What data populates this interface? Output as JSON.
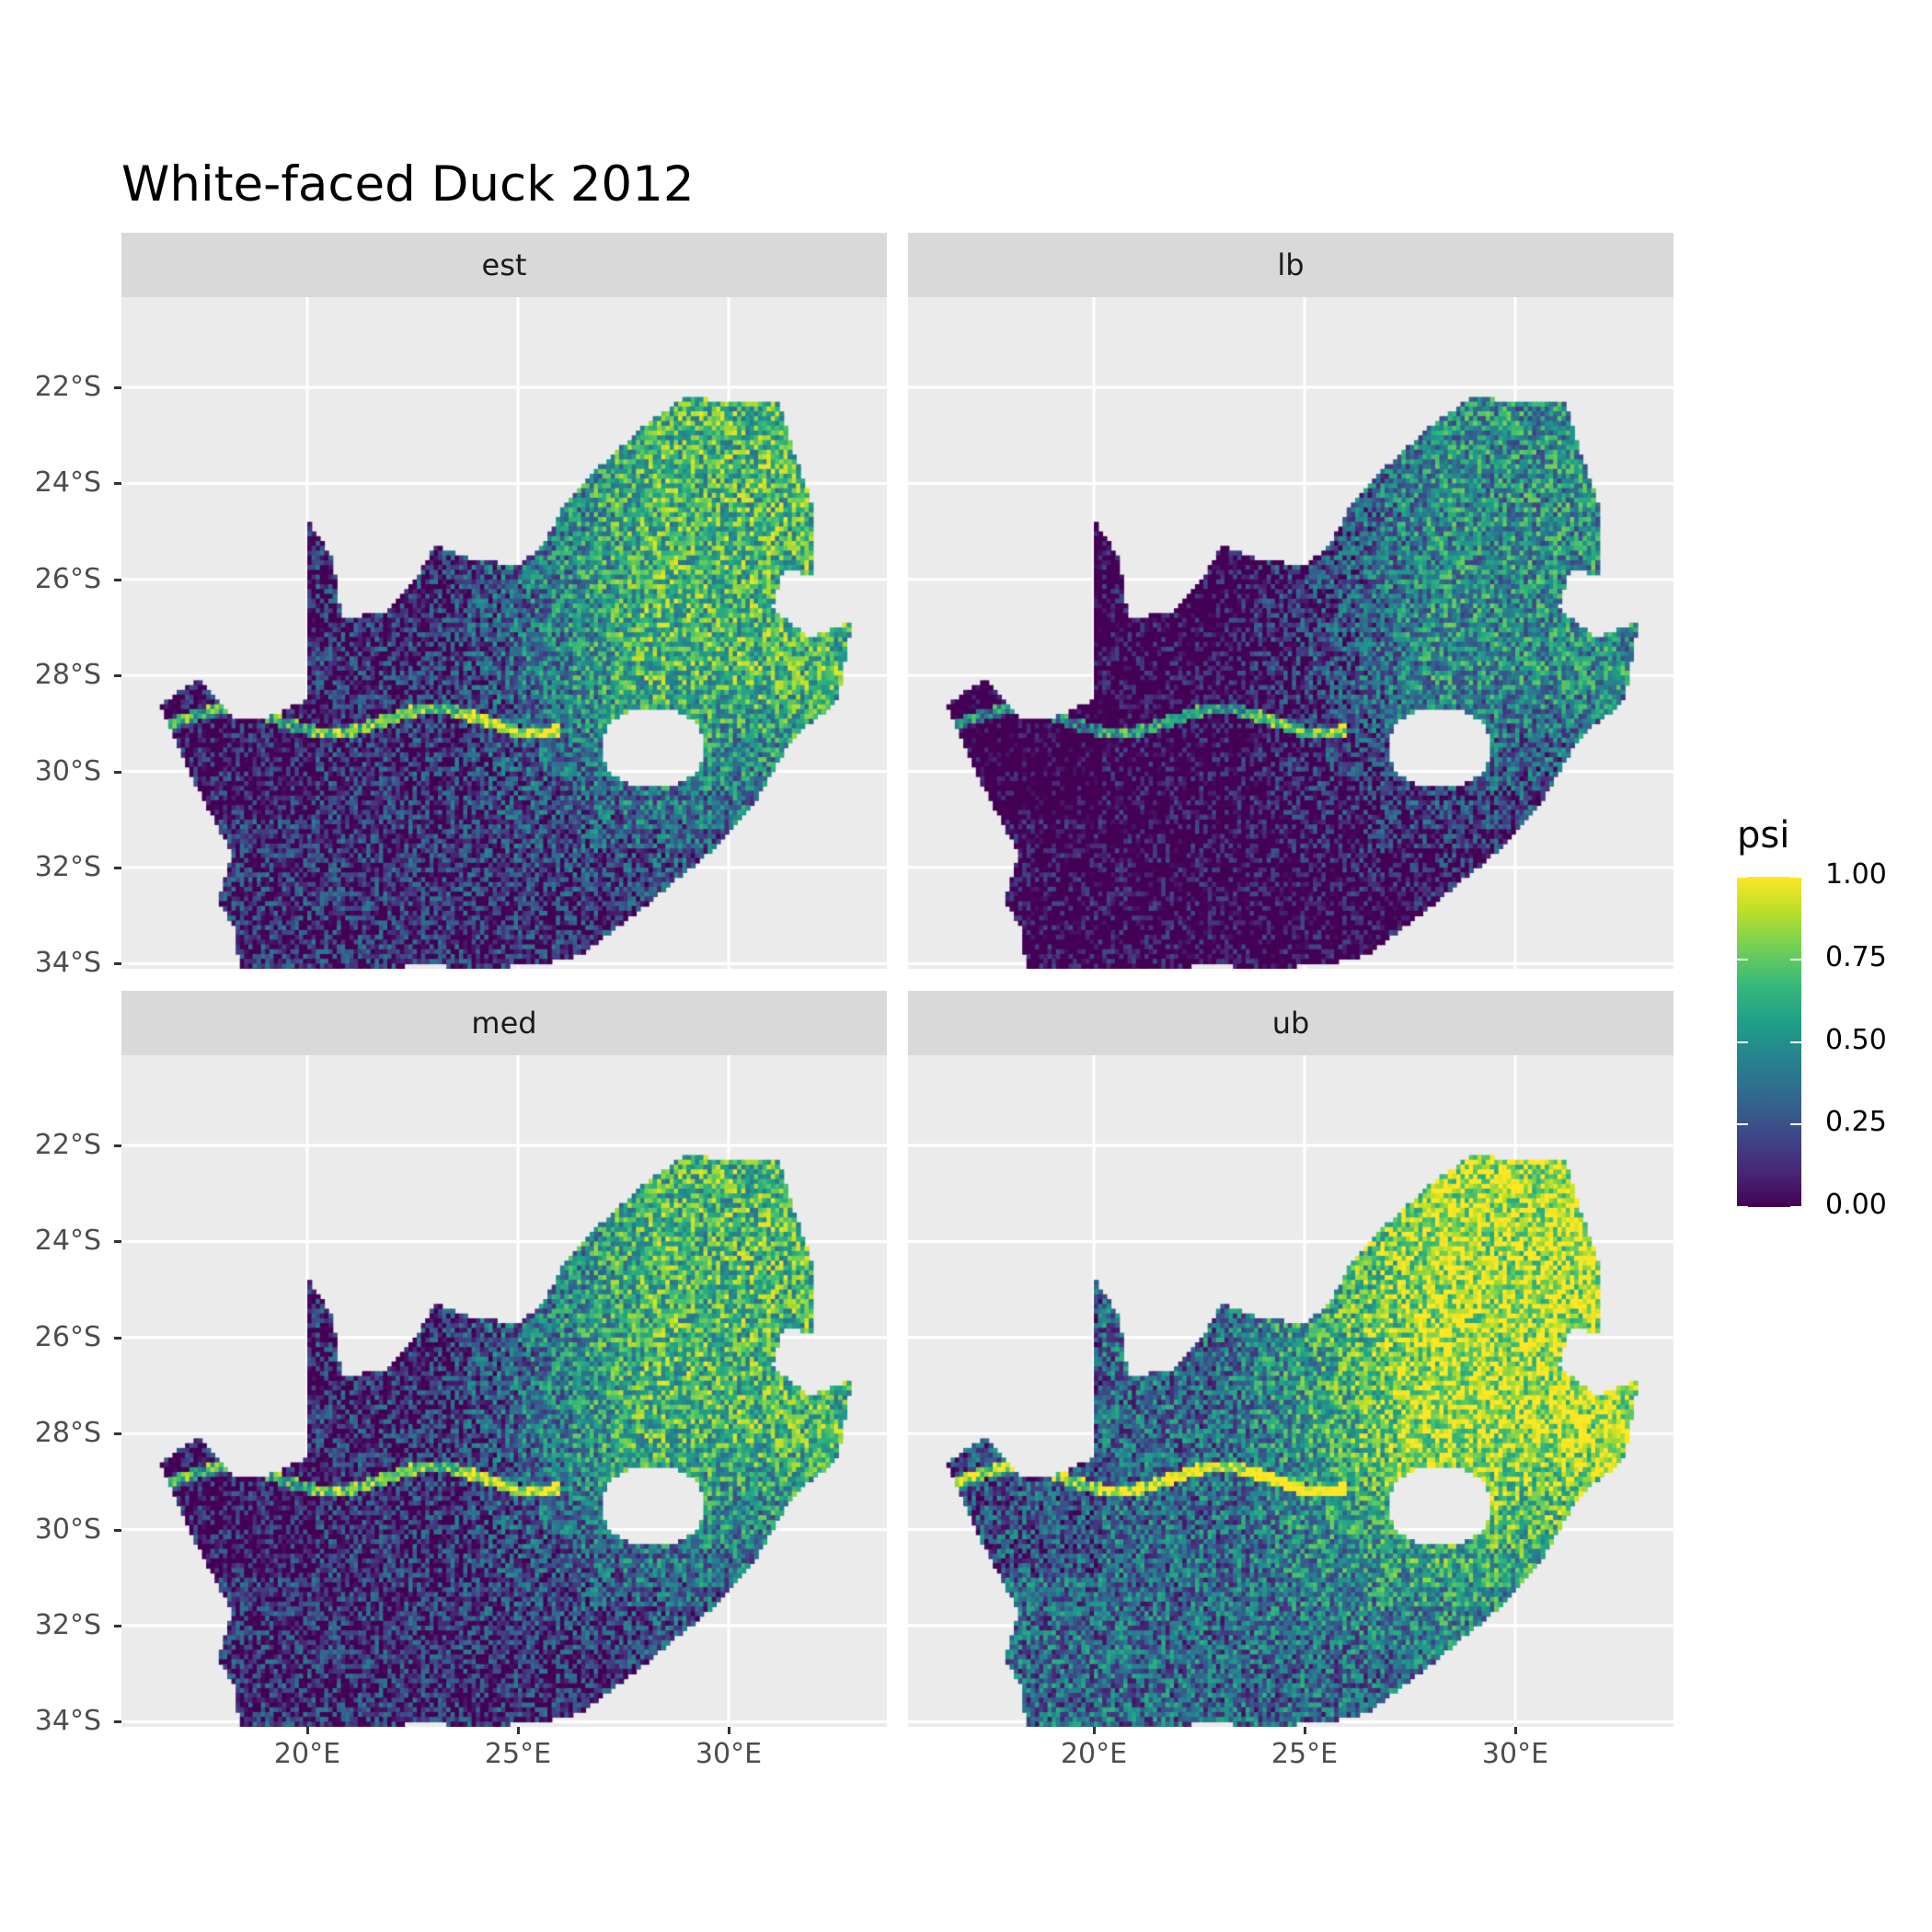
{
  "title": "White-faced Duck 2012",
  "facets": [
    "est",
    "lb",
    "med",
    "ub"
  ],
  "y_axis_labels": [
    "22°S",
    "24°S",
    "26°S",
    "28°S",
    "30°S",
    "32°S",
    "34°S"
  ],
  "y_axis_values": [
    -22,
    -24,
    -26,
    -28,
    -30,
    -32,
    -34
  ],
  "x_axis_labels": [
    "20°E",
    "25°E",
    "30°E"
  ],
  "x_axis_values": [
    20,
    25,
    30
  ],
  "legend": {
    "title": "psi",
    "labels": [
      "1.00",
      "0.75",
      "0.50",
      "0.25",
      "0.00"
    ],
    "values": [
      1,
      0.75,
      0.5,
      0.25,
      0
    ],
    "palette": "viridis",
    "colors": [
      "#440154",
      "#3b528b",
      "#21918c",
      "#5ec962",
      "#fde725"
    ]
  },
  "chart_data": {
    "type": "heatmap",
    "title": "White-faced Duck 2012",
    "facets": [
      "est",
      "lb",
      "med",
      "ub"
    ],
    "xlim": [
      15.6,
      33.8
    ],
    "ylim": [
      -35.5,
      -20.5
    ],
    "color_scale": {
      "name": "psi",
      "range": [
        0,
        1
      ],
      "palette": "viridis"
    },
    "grid": true
  }
}
